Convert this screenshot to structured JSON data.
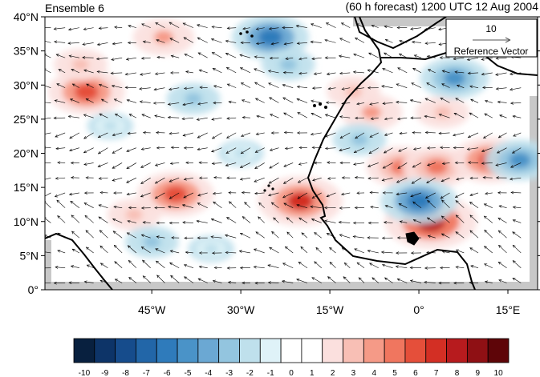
{
  "title_left": "Ensemble 6",
  "title_right": "(60 h forecast) 1200 UTC 12 Aug 2004",
  "map": {
    "lon_range": [
      -63,
      20
    ],
    "lat_range": [
      0,
      40
    ],
    "lat_ticks": [
      {
        "value": 0,
        "label": "0°"
      },
      {
        "value": 5,
        "label": "5°N"
      },
      {
        "value": 10,
        "label": "10°N"
      },
      {
        "value": 15,
        "label": "15°N"
      },
      {
        "value": 20,
        "label": "20°N"
      },
      {
        "value": 25,
        "label": "25°N"
      },
      {
        "value": 30,
        "label": "30°N"
      },
      {
        "value": 35,
        "label": "35°N"
      },
      {
        "value": 40,
        "label": "40°N"
      }
    ],
    "lon_ticks": [
      {
        "value": -45,
        "label": "45°W"
      },
      {
        "value": -30,
        "label": "30°W"
      },
      {
        "value": -15,
        "label": "15°W"
      },
      {
        "value": 0,
        "label": "0°"
      },
      {
        "value": 15,
        "label": "15°E"
      }
    ]
  },
  "reference_vector": {
    "magnitude": "10",
    "label": "Reference Vector"
  },
  "colorbar": {
    "labels": [
      "-10",
      "-9",
      "-8",
      "-7",
      "-6",
      "-5",
      "-4",
      "-3",
      "-2",
      "-1",
      "0",
      "1",
      "2",
      "3",
      "4",
      "5",
      "6",
      "7",
      "8",
      "9",
      "10"
    ],
    "colors": [
      "#08203f",
      "#0d3468",
      "#164c8c",
      "#2266a8",
      "#2f7bbb",
      "#4a93c8",
      "#6ba8d3",
      "#93c5df",
      "#bfe0ec",
      "#dff2f8",
      "#ffffff",
      "#ffffff",
      "#fbe0de",
      "#f8bfb5",
      "#f59a87",
      "#f0765f",
      "#e54f3a",
      "#d32f24",
      "#b71b1e",
      "#8f1014",
      "#5e0508"
    ]
  },
  "anomaly_centers": [
    {
      "lon": -56,
      "lat": 29,
      "value": 6
    },
    {
      "lon": -57,
      "lat": 33,
      "value": 3
    },
    {
      "lon": -43,
      "lat": 37,
      "value": 4
    },
    {
      "lon": -41,
      "lat": 14,
      "value": 6
    },
    {
      "lon": -48,
      "lat": 11,
      "value": 3
    },
    {
      "lon": -20,
      "lat": 13,
      "value": 7
    },
    {
      "lon": -8,
      "lat": 26,
      "value": 4
    },
    {
      "lon": -11,
      "lat": 29,
      "value": 3
    },
    {
      "lon": -3,
      "lat": 18,
      "value": 5
    },
    {
      "lon": 3,
      "lat": 18,
      "value": 5
    },
    {
      "lon": 12,
      "lat": 19,
      "value": 6
    },
    {
      "lon": 2,
      "lat": 10,
      "value": 8
    },
    {
      "lon": 4,
      "lat": 26,
      "value": 3
    },
    {
      "lon": -25,
      "lat": 37,
      "value": -6
    },
    {
      "lon": -22,
      "lat": 33,
      "value": -3
    },
    {
      "lon": -38,
      "lat": 28,
      "value": -3
    },
    {
      "lon": 6,
      "lat": 31,
      "value": -5
    },
    {
      "lon": 0,
      "lat": 13,
      "value": -6
    },
    {
      "lon": 17,
      "lat": 19,
      "value": -5
    },
    {
      "lon": -45,
      "lat": 7,
      "value": -3
    },
    {
      "lon": -35,
      "lat": 6,
      "value": -2
    },
    {
      "lon": -52,
      "lat": 24,
      "value": -2
    },
    {
      "lon": -30,
      "lat": 20,
      "value": -2
    },
    {
      "lon": -10,
      "lat": 22,
      "value": -3
    }
  ],
  "colors": {
    "ocean_mask": "#c8c8c8",
    "coastline": "#000000",
    "vectors": "#000000"
  }
}
